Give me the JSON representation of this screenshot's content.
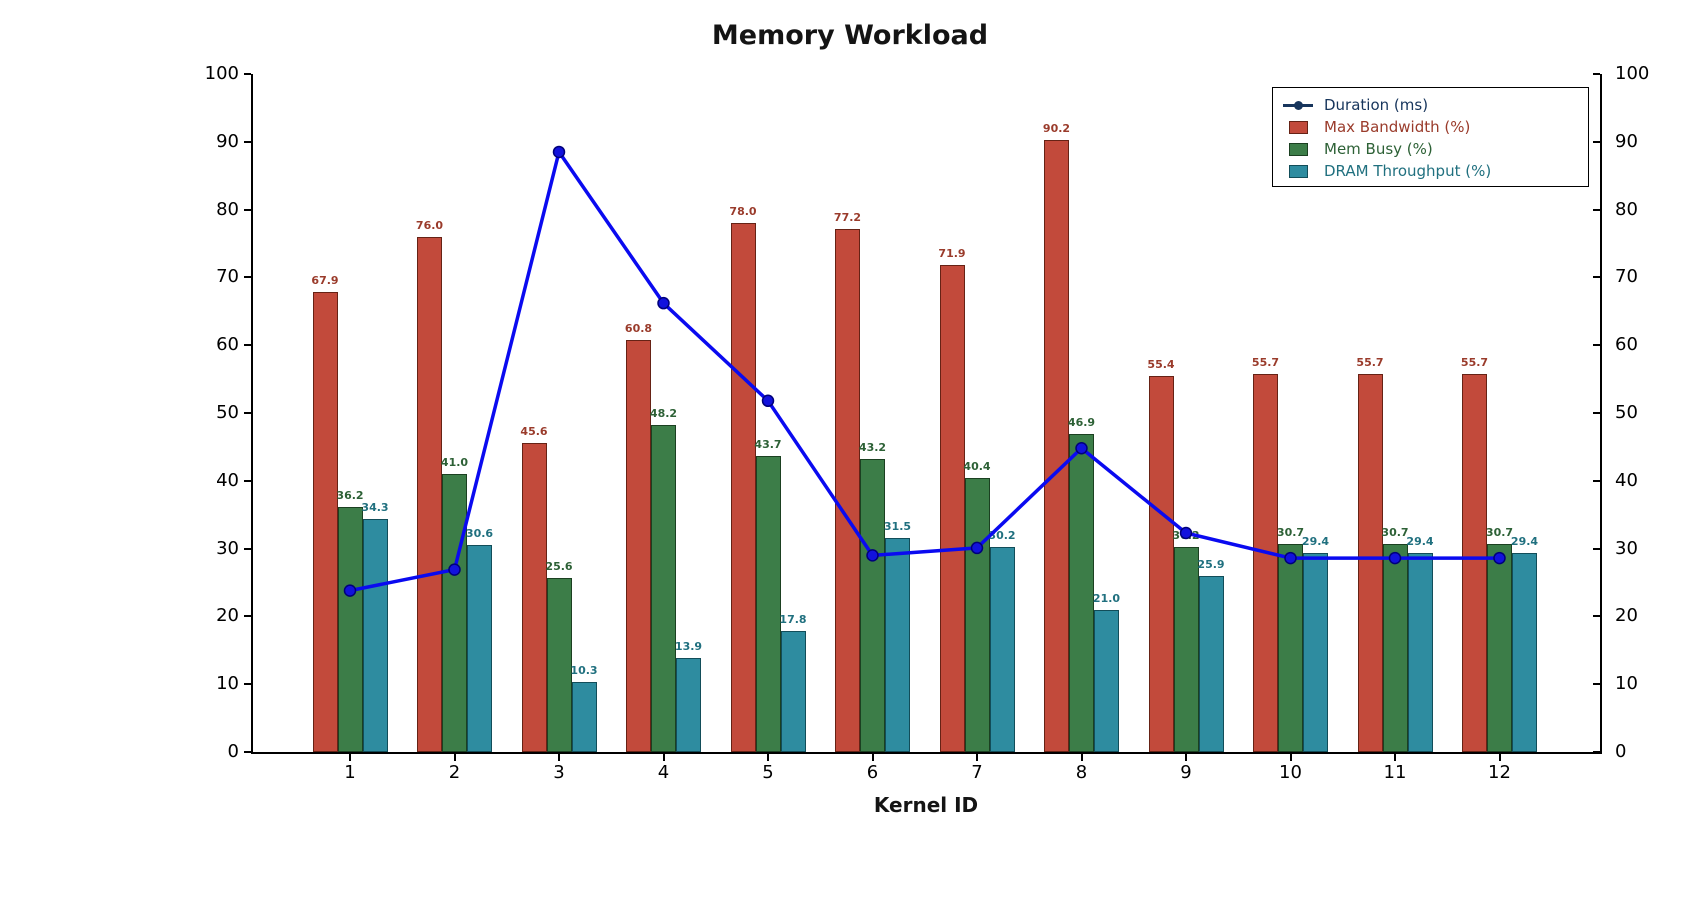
{
  "chart_data": {
    "type": "bar+line",
    "title": "Memory Workload",
    "xlabel": "Kernel ID",
    "categories": [
      "1",
      "2",
      "3",
      "4",
      "5",
      "6",
      "7",
      "8",
      "9",
      "10",
      "11",
      "12"
    ],
    "ylim": [
      0,
      100
    ],
    "y_ticks": [
      0,
      10,
      20,
      30,
      40,
      50,
      60,
      70,
      80,
      90,
      100
    ],
    "dual_y_axis": true,
    "grid": false,
    "legend_position": "upper right",
    "bar_value_labels_shown": true,
    "series": [
      {
        "name": "Duration (ms)",
        "type": "line",
        "color": "#0a0af0",
        "marker_fill": "#1212dd",
        "marker_edge": "#00007a",
        "legend_text_color": "#17355c",
        "values": [
          23.8,
          26.9,
          88.5,
          66.2,
          51.8,
          29.0,
          30.1,
          44.8,
          32.3,
          28.6,
          28.6,
          28.6
        ]
      },
      {
        "name": "Max Bandwidth (%)",
        "type": "bar",
        "color": "#c24a3b",
        "edge_color": "#662215",
        "label_color": "#9a3b2b",
        "legend_text_color": "#9a3b2b",
        "values": [
          67.9,
          76.0,
          45.6,
          60.8,
          78.0,
          77.2,
          71.9,
          90.2,
          55.4,
          55.7,
          55.7,
          55.7
        ]
      },
      {
        "name": "Mem Busy (%)",
        "type": "bar",
        "color": "#3c7d48",
        "edge_color": "#1b4021",
        "label_color": "#2d6136",
        "legend_text_color": "#2d6136",
        "values": [
          36.2,
          41.0,
          25.6,
          48.2,
          43.7,
          43.2,
          40.4,
          46.9,
          30.2,
          30.7,
          30.7,
          30.7
        ]
      },
      {
        "name": "DRAM Throughput (%)",
        "type": "bar",
        "color": "#2e8ca0",
        "edge_color": "#124d59",
        "label_color": "#20707f",
        "legend_text_color": "#20707f",
        "values": [
          34.3,
          30.6,
          10.3,
          13.9,
          17.8,
          31.5,
          30.2,
          21.0,
          25.9,
          29.4,
          29.4,
          29.4
        ]
      }
    ]
  }
}
